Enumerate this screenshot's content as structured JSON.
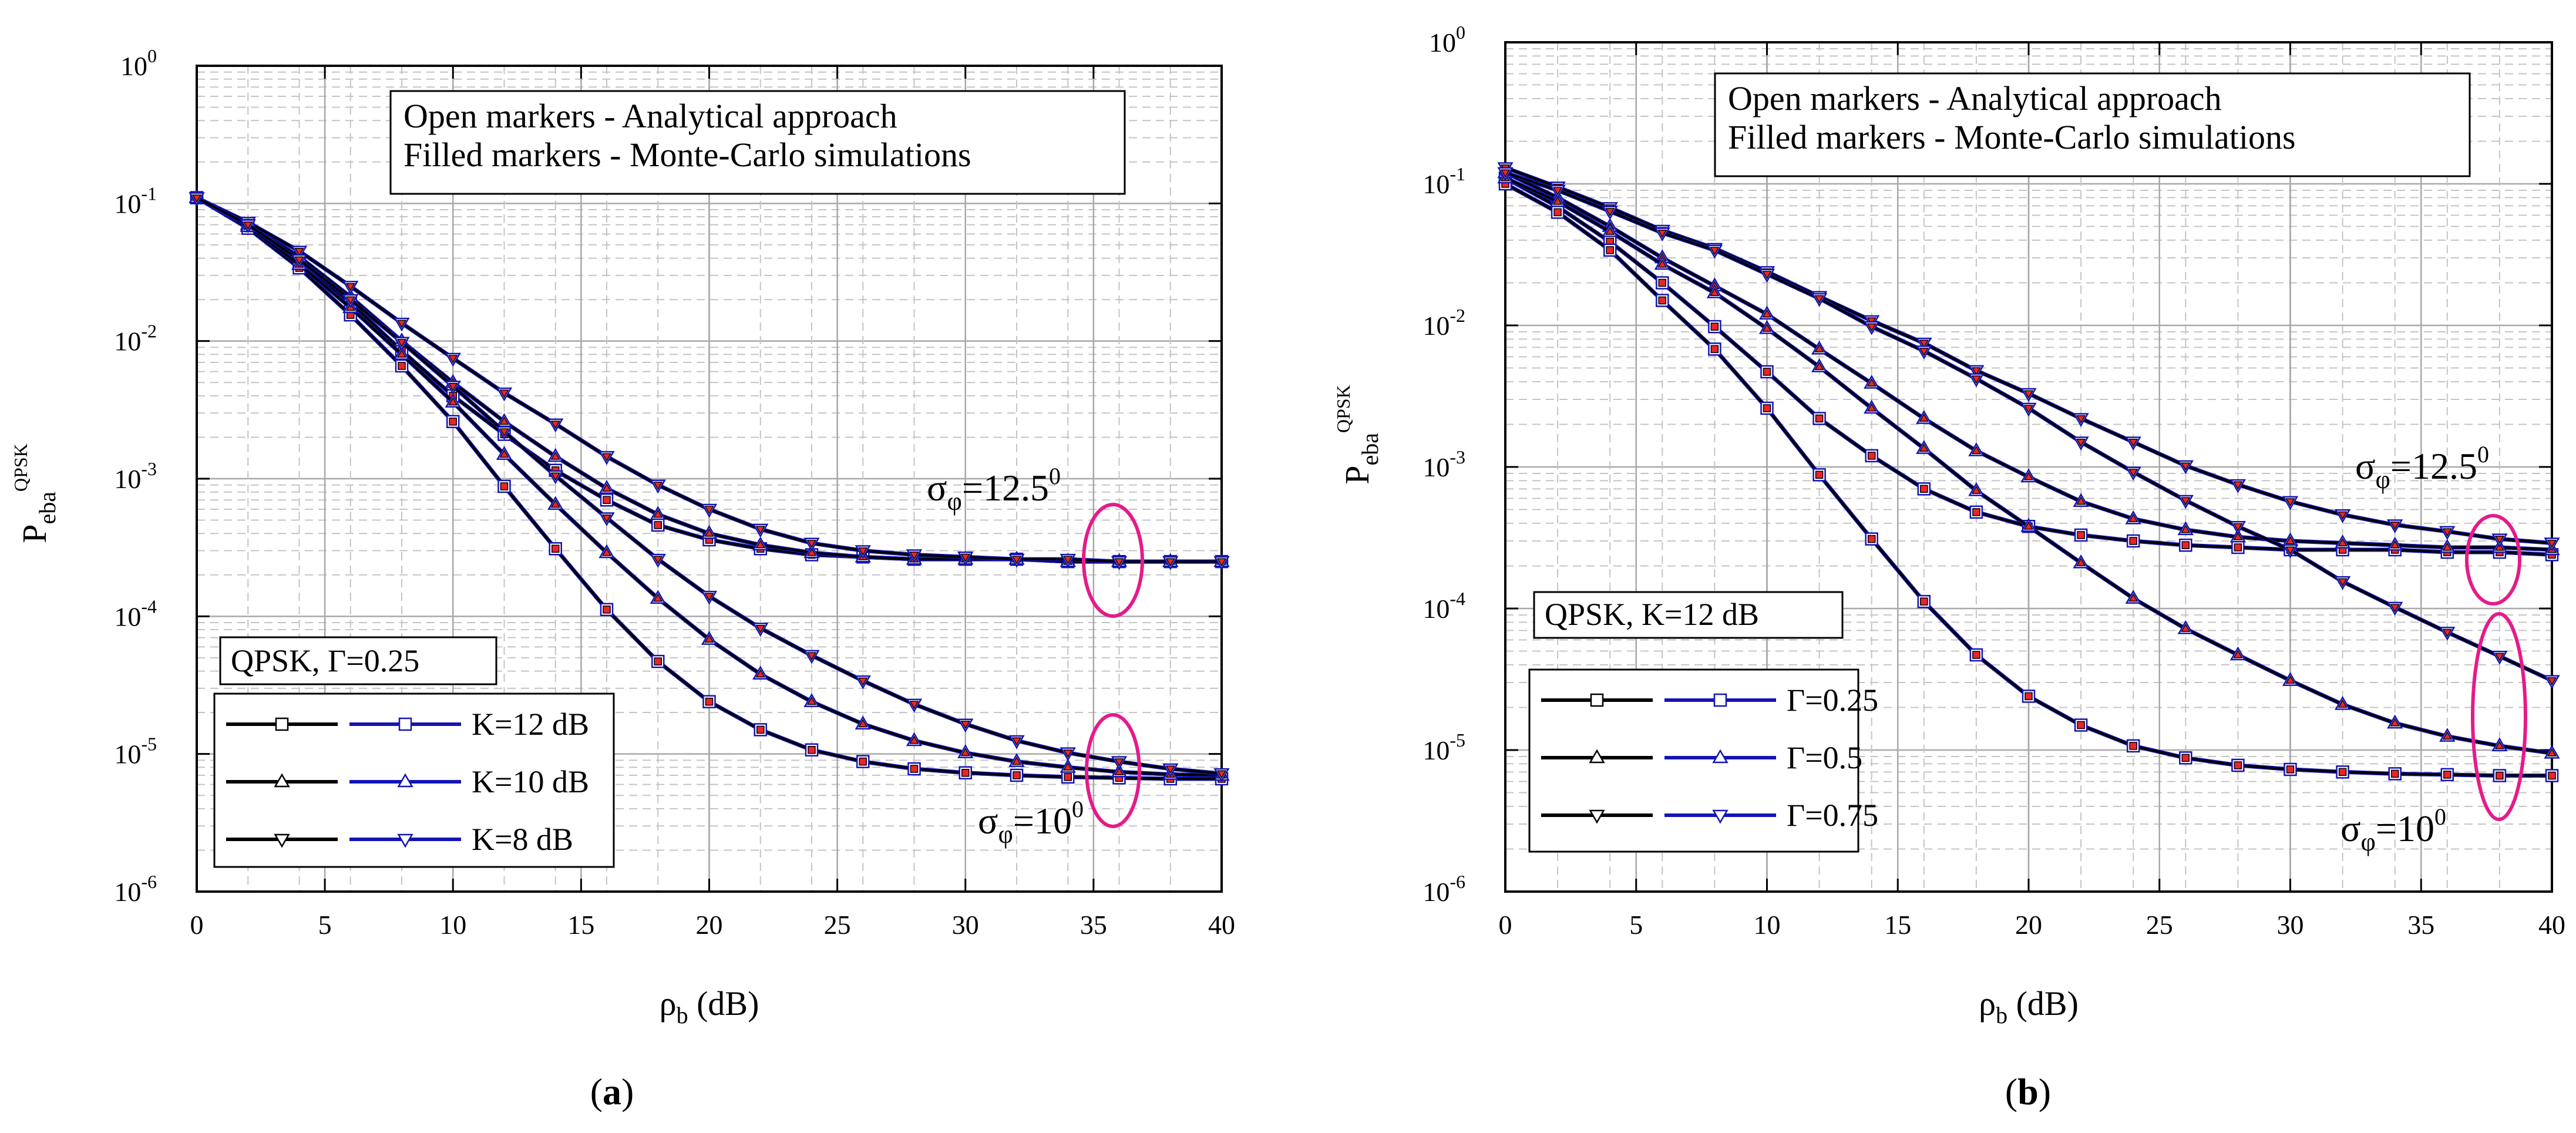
{
  "figure": {
    "captions": [
      "(a)",
      "(b)"
    ]
  },
  "colors": {
    "sim_line": "#000000",
    "ana_line": "#1414b4",
    "ana_line_red": "#1414b4",
    "sim_marker_fill": "#e8252b",
    "ellipse": "#e51b8a",
    "grid_major": "#a8a8a8",
    "grid_minor": "#c4c4c4"
  },
  "chart_data": [
    {
      "id": "a",
      "type": "line",
      "title": "",
      "xlabel": "ρ_b (dB)",
      "ylabel": "P_eba^QPSK",
      "xlim": [
        0,
        40
      ],
      "xticks": [
        0,
        5,
        10,
        15,
        20,
        25,
        30,
        35,
        40
      ],
      "yscale": "log",
      "ylim": [
        1e-06,
        1
      ],
      "yticks": [
        "10^-6",
        "10^-5",
        "10^-4",
        "10^-3",
        "10^-2",
        "10^-1",
        "10^0"
      ],
      "x": [
        0,
        2,
        4,
        6,
        8,
        10,
        12,
        14,
        16,
        18,
        20,
        22,
        24,
        26,
        28,
        30,
        32,
        34,
        36,
        38,
        40
      ],
      "annotation_box": [
        "Open markers - Analytical approach",
        "Filled markers - Monte-Carlo simulations"
      ],
      "condition_box": "QPSK, Γ=0.25",
      "legend": [
        {
          "label": "K=12 dB",
          "marker": "square"
        },
        {
          "label": "K=10 dB",
          "marker": "triangle-up"
        },
        {
          "label": "K=8 dB",
          "marker": "triangle-down"
        }
      ],
      "sigma_labels": [
        {
          "symbol": "σ",
          "sub": "φ",
          "text": "=12.5",
          "sup": "0"
        },
        {
          "symbol": "σ",
          "sub": "φ",
          "text": "=10",
          "sup": "0"
        }
      ],
      "series": [
        {
          "name": "K=12 dB, σφ=12.5°",
          "marker": "square",
          "group": "high",
          "values": [
            0.11,
            0.068,
            0.038,
            0.019,
            0.0085,
            0.004,
            0.0021,
            0.00115,
            0.0007,
            0.00046,
            0.00036,
            0.00031,
            0.00028,
            0.00027,
            0.00026,
            0.00026,
            0.00026,
            0.00025,
            0.00025,
            0.00025,
            0.00025
          ]
        },
        {
          "name": "K=10 dB, σφ=12.5°",
          "marker": "triangle-up",
          "group": "high",
          "values": [
            0.11,
            0.07,
            0.041,
            0.021,
            0.01,
            0.005,
            0.0026,
            0.00145,
            0.00085,
            0.00055,
            0.0004,
            0.00033,
            0.00029,
            0.00027,
            0.00026,
            0.00026,
            0.00026,
            0.00025,
            0.00025,
            0.00025,
            0.00025
          ]
        },
        {
          "name": "K=8 dB, σφ=12.5°",
          "marker": "triangle-down",
          "group": "high",
          "values": [
            0.11,
            0.073,
            0.045,
            0.025,
            0.0135,
            0.0075,
            0.0042,
            0.0025,
            0.00145,
            0.0009,
            0.0006,
            0.00043,
            0.00034,
            0.0003,
            0.00028,
            0.00027,
            0.00026,
            0.00026,
            0.00025,
            0.00025,
            0.00025
          ]
        },
        {
          "name": "K=12 dB, σφ=10°",
          "marker": "square",
          "group": "low",
          "values": [
            0.11,
            0.066,
            0.034,
            0.0155,
            0.0066,
            0.0026,
            0.00088,
            0.00031,
            0.000112,
            4.7e-05,
            2.4e-05,
            1.5e-05,
            1.07e-05,
            8.8e-06,
            7.8e-06,
            7.3e-06,
            7e-06,
            6.8e-06,
            6.7e-06,
            6.6e-06,
            6.6e-06
          ]
        },
        {
          "name": "K=10 dB, σφ=10°",
          "marker": "triangle-up",
          "group": "low",
          "values": [
            0.11,
            0.068,
            0.036,
            0.0175,
            0.008,
            0.0036,
            0.0015,
            0.00065,
            0.00029,
            0.000135,
            6.8e-05,
            3.8e-05,
            2.4e-05,
            1.65e-05,
            1.25e-05,
            1.02e-05,
            8.8e-06,
            8e-06,
            7.4e-06,
            7.1e-06,
            7e-06
          ]
        },
        {
          "name": "K=8 dB, σφ=10°",
          "marker": "triangle-down",
          "group": "low",
          "values": [
            0.11,
            0.07,
            0.039,
            0.02,
            0.0098,
            0.0047,
            0.0022,
            0.00105,
            0.00052,
            0.00026,
            0.00014,
            8.2e-05,
            5.2e-05,
            3.4e-05,
            2.3e-05,
            1.65e-05,
            1.25e-05,
            1.02e-05,
            8.8e-06,
            7.8e-06,
            7.2e-06
          ]
        }
      ]
    },
    {
      "id": "b",
      "type": "line",
      "title": "",
      "xlabel": "ρ_b (dB)",
      "ylabel": "P_eba^QPSK",
      "xlim": [
        0,
        40
      ],
      "xticks": [
        0,
        5,
        10,
        15,
        20,
        25,
        30,
        35,
        40
      ],
      "yscale": "log",
      "ylim": [
        1e-06,
        1
      ],
      "yticks": [
        "10^-6",
        "10^-5",
        "10^-4",
        "10^-3",
        "10^-2",
        "10^-1",
        "10^0"
      ],
      "x": [
        0,
        2,
        4,
        6,
        8,
        10,
        12,
        14,
        16,
        18,
        20,
        22,
        24,
        26,
        28,
        30,
        32,
        34,
        36,
        38,
        40
      ],
      "annotation_box": [
        "Open markers - Analytical approach",
        "Filled markers - Monte-Carlo simulations"
      ],
      "condition_box": "QPSK, K=12 dB",
      "legend": [
        {
          "label": "Γ=0.25",
          "marker": "square"
        },
        {
          "label": "Γ=0.5",
          "marker": "triangle-up"
        },
        {
          "label": "Γ=0.75",
          "marker": "triangle-down"
        }
      ],
      "sigma_labels": [
        {
          "symbol": "σ",
          "sub": "φ",
          "text": "=12.5",
          "sup": "0"
        },
        {
          "symbol": "σ",
          "sub": "φ",
          "text": "=10",
          "sup": "0"
        }
      ],
      "series": [
        {
          "name": "Γ=0.25, σφ=12.5°",
          "marker": "square",
          "group": "high",
          "values": [
            0.11,
            0.069,
            0.039,
            0.02,
            0.0098,
            0.0047,
            0.0022,
            0.0012,
            0.0007,
            0.00048,
            0.00038,
            0.00033,
            0.0003,
            0.00028,
            0.00027,
            0.00026,
            0.00026,
            0.00026,
            0.00025,
            0.00025,
            0.00024
          ]
        },
        {
          "name": "Γ=0.5, σφ=12.5°",
          "marker": "triangle-up",
          "group": "high",
          "values": [
            0.12,
            0.08,
            0.05,
            0.03,
            0.019,
            0.012,
            0.0068,
            0.0039,
            0.0022,
            0.0013,
            0.00085,
            0.00057,
            0.00043,
            0.00036,
            0.00032,
            0.0003,
            0.00029,
            0.00028,
            0.00027,
            0.00027,
            0.00026
          ]
        },
        {
          "name": "Γ=0.75, σφ=12.5°",
          "marker": "triangle-down",
          "group": "high",
          "values": [
            0.13,
            0.095,
            0.068,
            0.047,
            0.035,
            0.024,
            0.016,
            0.0108,
            0.0075,
            0.0048,
            0.0033,
            0.0022,
            0.0015,
            0.00102,
            0.00075,
            0.00057,
            0.00046,
            0.00039,
            0.00035,
            0.00031,
            0.00029
          ]
        },
        {
          "name": "Γ=0.25, σφ=10°",
          "marker": "square",
          "group": "low",
          "values": [
            0.1,
            0.063,
            0.034,
            0.015,
            0.0068,
            0.0026,
            0.00088,
            0.00031,
            0.000112,
            4.7e-05,
            2.4e-05,
            1.5e-05,
            1.07e-05,
            8.8e-06,
            7.8e-06,
            7.3e-06,
            7e-06,
            6.8e-06,
            6.7e-06,
            6.6e-06,
            6.6e-06
          ]
        },
        {
          "name": "Γ=0.5, σφ=10°",
          "marker": "triangle-up",
          "group": "low",
          "values": [
            0.11,
            0.075,
            0.046,
            0.027,
            0.017,
            0.0095,
            0.0051,
            0.0026,
            0.00135,
            0.00068,
            0.00038,
            0.00021,
            0.000118,
            7.2e-05,
            4.7e-05,
            3.1e-05,
            2.1e-05,
            1.55e-05,
            1.25e-05,
            1.07e-05,
            9.5e-06
          ]
        },
        {
          "name": "Γ=0.75, σφ=10°",
          "marker": "triangle-down",
          "group": "low",
          "values": [
            0.12,
            0.09,
            0.064,
            0.045,
            0.034,
            0.023,
            0.0155,
            0.0098,
            0.0066,
            0.0042,
            0.0026,
            0.0015,
            0.00092,
            0.00058,
            0.00038,
            0.00026,
            0.000155,
            0.000102,
            6.8e-05,
            4.6e-05,
            3.1e-05
          ]
        }
      ]
    }
  ]
}
